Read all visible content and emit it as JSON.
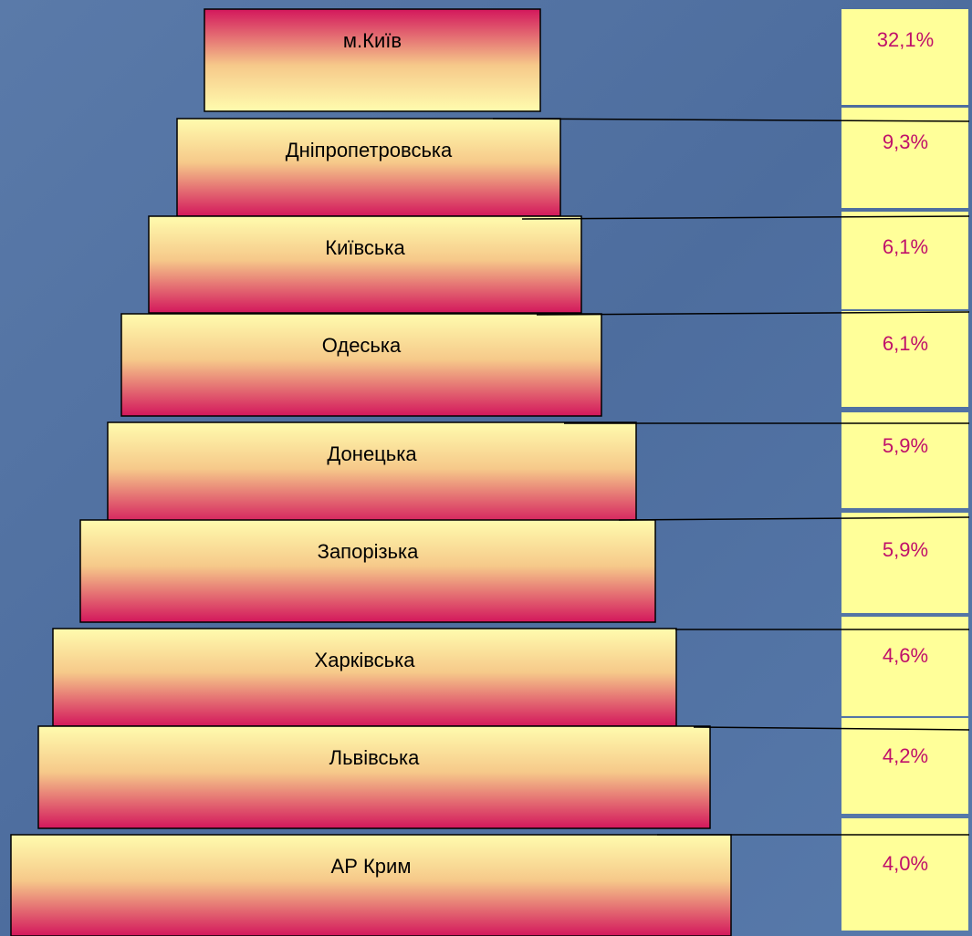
{
  "items": [
    {
      "label": "м.Київ",
      "value": "32,1%"
    },
    {
      "label": "Дніпропетровська",
      "value": "9,3%"
    },
    {
      "label": "Київська",
      "value": "6,1%"
    },
    {
      "label": "Одеська",
      "value": "6,1%"
    },
    {
      "label": "Донецька",
      "value": "5,9%"
    },
    {
      "label": "Запорізька",
      "value": "5,9%"
    },
    {
      "label": "Харківська",
      "value": "4,6%"
    },
    {
      "label": "Львівська",
      "value": "4,2%"
    },
    {
      "label": "АР Крим",
      "value": "4,0%"
    }
  ]
}
